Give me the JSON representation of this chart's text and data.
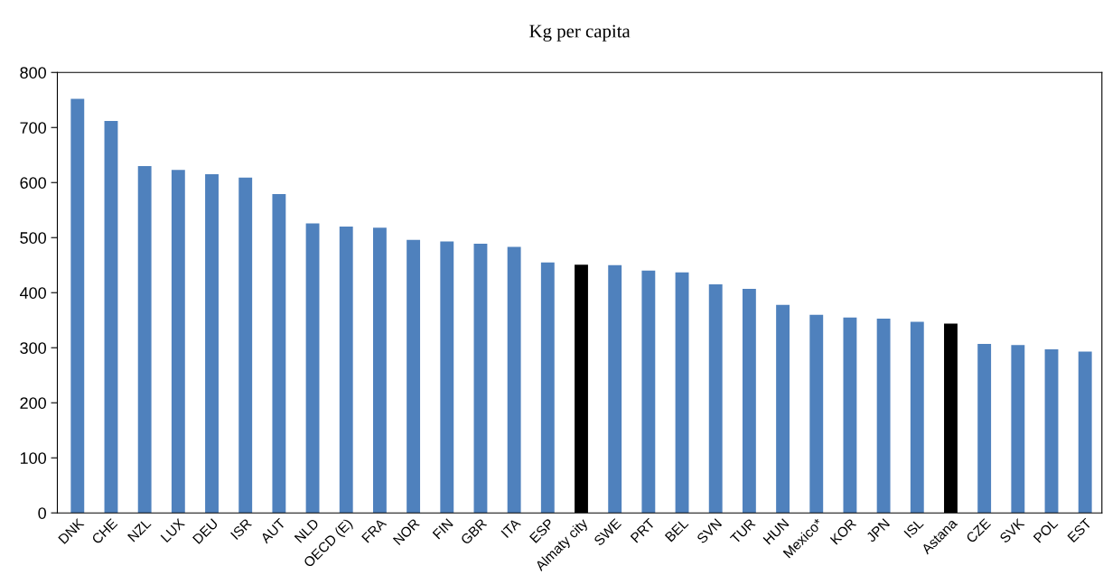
{
  "chart_data": {
    "type": "bar",
    "title": "Kg per capita",
    "categories": [
      "DNK",
      "CHE",
      "NZL",
      "LUX",
      "DEU",
      "ISR",
      "AUT",
      "NLD",
      "OECD (E)",
      "FRA",
      "NOR",
      "FIN",
      "GBR",
      "ITA",
      "ESP",
      "Almaty city",
      "SWE",
      "PRT",
      "BEL",
      "SVN",
      "TUR",
      "HUN",
      "Mexico*",
      "KOR",
      "JPN",
      "ISL",
      "Astana",
      "CZE",
      "SVK",
      "POL",
      "EST"
    ],
    "values": [
      752,
      712,
      630,
      623,
      615,
      609,
      579,
      526,
      520,
      518,
      496,
      493,
      489,
      483,
      455,
      451,
      450,
      440,
      437,
      415,
      407,
      378,
      360,
      355,
      353,
      347,
      344,
      307,
      305,
      297,
      293
    ],
    "colors": [
      "#4f81bd",
      "#4f81bd",
      "#4f81bd",
      "#4f81bd",
      "#4f81bd",
      "#4f81bd",
      "#4f81bd",
      "#4f81bd",
      "#4f81bd",
      "#4f81bd",
      "#4f81bd",
      "#4f81bd",
      "#4f81bd",
      "#4f81bd",
      "#4f81bd",
      "#000000",
      "#4f81bd",
      "#4f81bd",
      "#4f81bd",
      "#4f81bd",
      "#4f81bd",
      "#4f81bd",
      "#4f81bd",
      "#4f81bd",
      "#4f81bd",
      "#4f81bd",
      "#000000",
      "#4f81bd",
      "#4f81bd",
      "#4f81bd",
      "#4f81bd"
    ],
    "ylim": [
      0,
      800
    ],
    "yticks": [
      0,
      100,
      200,
      300,
      400,
      500,
      600,
      700,
      800
    ],
    "grid": false
  }
}
